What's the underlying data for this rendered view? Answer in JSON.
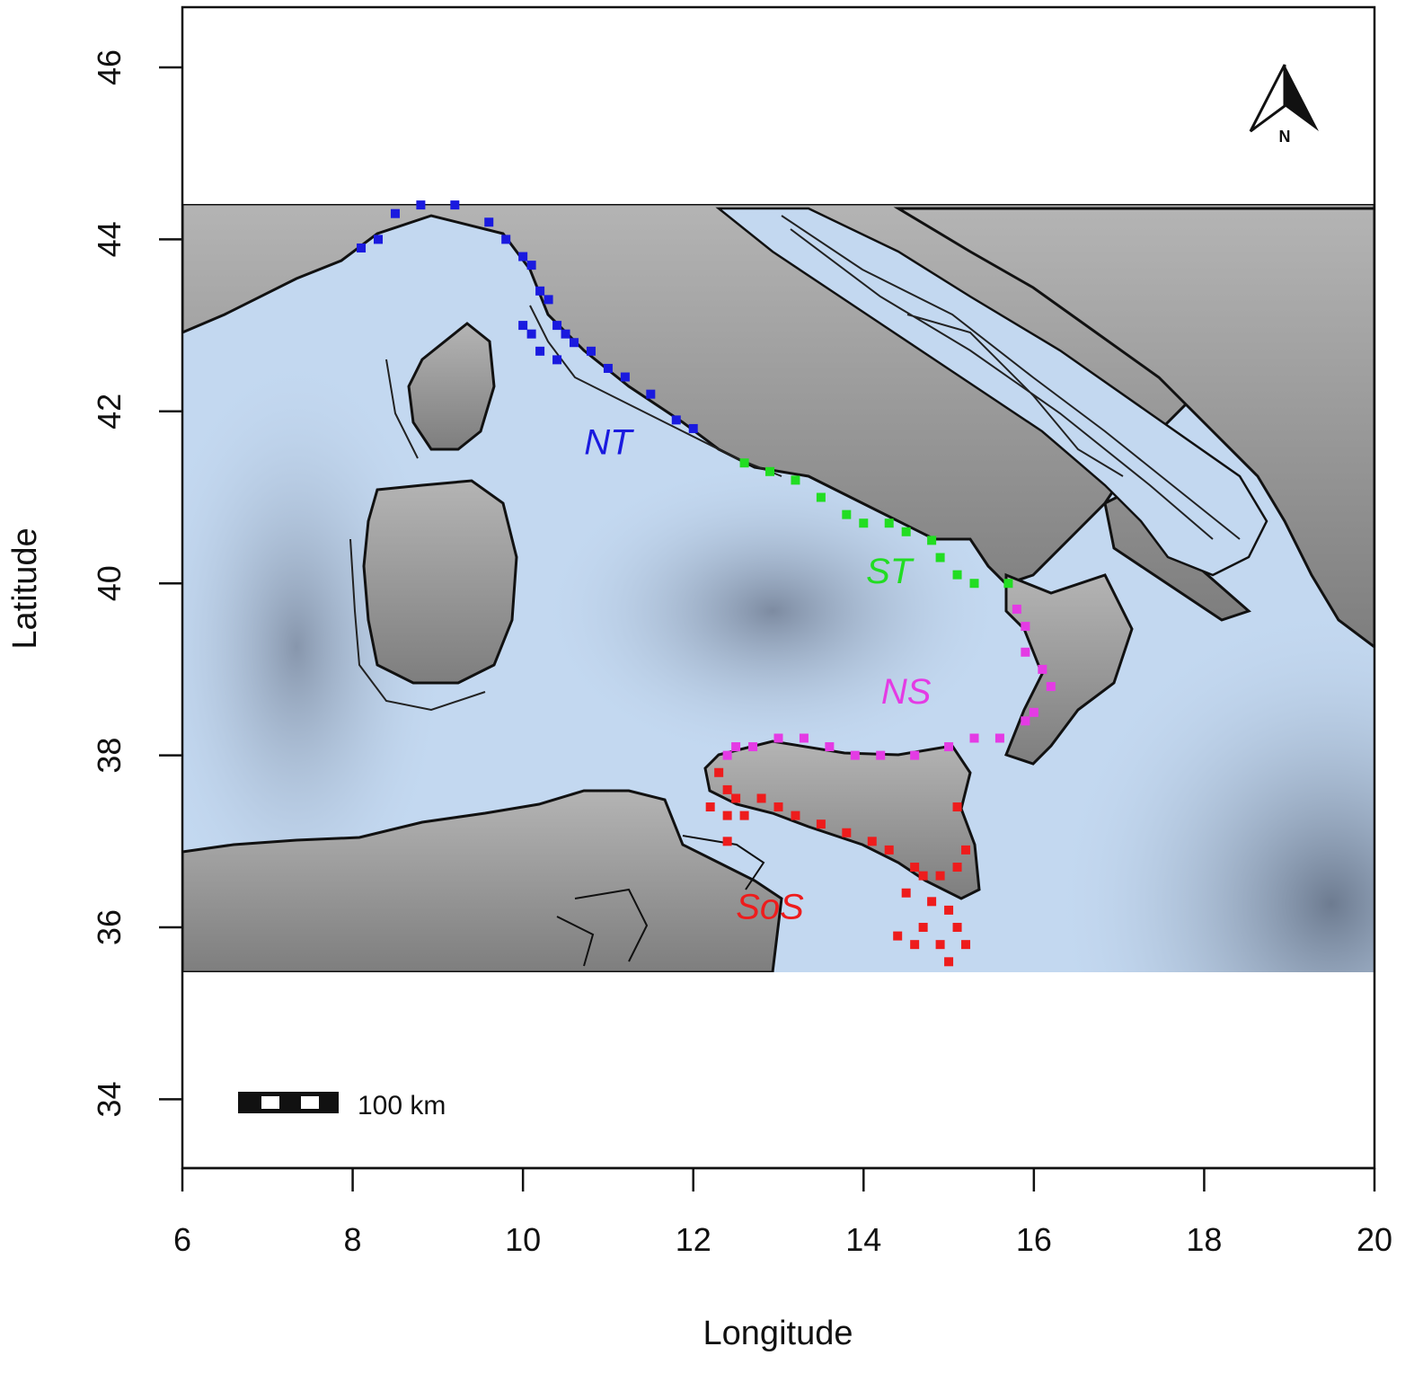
{
  "axes": {
    "x_label": "Longitude",
    "y_label": "Latitude",
    "x_ticks": [
      6,
      8,
      10,
      12,
      14,
      16,
      18,
      20
    ],
    "y_ticks": [
      34,
      36,
      38,
      40,
      42,
      44,
      46
    ],
    "x_range": [
      6,
      20
    ],
    "y_range": [
      33.2,
      46.7
    ]
  },
  "raster_extent": {
    "lon": [
      6,
      20
    ],
    "lat": [
      35.5,
      44.5
    ]
  },
  "colors": {
    "sea": "#c3d8f0",
    "deep_sea": "#8a98ad",
    "land": "#8c8c8c",
    "coast": "#111111",
    "NT": "#1a1adf",
    "ST": "#22dd22",
    "NS": "#e43be4",
    "SoS": "#ee1c1c"
  },
  "regions": [
    {
      "id": "NT",
      "label": "NT",
      "lon": 11.0,
      "lat": 41.5
    },
    {
      "id": "ST",
      "label": "ST",
      "lon": 14.3,
      "lat": 40.0
    },
    {
      "id": "NS",
      "label": "NS",
      "lon": 14.5,
      "lat": 38.6
    },
    {
      "id": "SoS",
      "label": "SoS",
      "lon": 12.9,
      "lat": 36.1
    }
  ],
  "scale_bar": {
    "label": "100 km"
  },
  "north_arrow": {
    "label": "N"
  },
  "sample_points": {
    "NT": [
      [
        8.1,
        43.9
      ],
      [
        8.3,
        44.0
      ],
      [
        8.5,
        44.3
      ],
      [
        8.8,
        44.4
      ],
      [
        9.2,
        44.4
      ],
      [
        9.6,
        44.2
      ],
      [
        9.8,
        44.0
      ],
      [
        10.0,
        43.8
      ],
      [
        10.1,
        43.7
      ],
      [
        10.2,
        43.4
      ],
      [
        10.3,
        43.3
      ],
      [
        10.4,
        43.0
      ],
      [
        10.5,
        42.9
      ],
      [
        10.2,
        42.7
      ],
      [
        10.4,
        42.6
      ],
      [
        10.6,
        42.8
      ],
      [
        10.8,
        42.7
      ],
      [
        11.0,
        42.5
      ],
      [
        11.2,
        42.4
      ],
      [
        11.5,
        42.2
      ],
      [
        11.8,
        41.9
      ],
      [
        12.0,
        41.8
      ],
      [
        10.0,
        43.0
      ],
      [
        10.1,
        42.9
      ]
    ],
    "ST": [
      [
        12.6,
        41.4
      ],
      [
        12.9,
        41.3
      ],
      [
        13.2,
        41.2
      ],
      [
        13.5,
        41.0
      ],
      [
        13.8,
        40.8
      ],
      [
        14.0,
        40.7
      ],
      [
        14.3,
        40.7
      ],
      [
        14.5,
        40.6
      ],
      [
        14.8,
        40.5
      ],
      [
        14.9,
        40.3
      ],
      [
        15.1,
        40.1
      ],
      [
        15.3,
        40.0
      ],
      [
        15.7,
        40.0
      ]
    ],
    "NS": [
      [
        15.8,
        39.7
      ],
      [
        15.9,
        39.5
      ],
      [
        15.9,
        39.2
      ],
      [
        16.1,
        39.0
      ],
      [
        16.2,
        38.8
      ],
      [
        16.0,
        38.5
      ],
      [
        15.9,
        38.4
      ],
      [
        15.6,
        38.2
      ],
      [
        15.3,
        38.2
      ],
      [
        15.0,
        38.1
      ],
      [
        14.6,
        38.0
      ],
      [
        14.2,
        38.0
      ],
      [
        13.9,
        38.0
      ],
      [
        13.6,
        38.1
      ],
      [
        13.3,
        38.2
      ],
      [
        13.0,
        38.2
      ],
      [
        12.7,
        38.1
      ],
      [
        12.5,
        38.1
      ],
      [
        12.4,
        38.0
      ]
    ],
    "SoS": [
      [
        12.3,
        37.8
      ],
      [
        12.4,
        37.6
      ],
      [
        12.5,
        37.5
      ],
      [
        12.2,
        37.4
      ],
      [
        12.4,
        37.3
      ],
      [
        12.6,
        37.3
      ],
      [
        12.8,
        37.5
      ],
      [
        13.0,
        37.4
      ],
      [
        13.2,
        37.3
      ],
      [
        13.5,
        37.2
      ],
      [
        13.8,
        37.1
      ],
      [
        14.1,
        37.0
      ],
      [
        14.3,
        36.9
      ],
      [
        14.6,
        36.7
      ],
      [
        14.7,
        36.6
      ],
      [
        14.9,
        36.6
      ],
      [
        15.1,
        36.7
      ],
      [
        15.2,
        36.9
      ],
      [
        15.1,
        37.4
      ],
      [
        14.8,
        36.3
      ],
      [
        15.0,
        36.2
      ],
      [
        14.7,
        36.0
      ],
      [
        15.1,
        36.0
      ],
      [
        14.6,
        35.8
      ],
      [
        14.9,
        35.8
      ],
      [
        15.2,
        35.8
      ],
      [
        14.4,
        35.9
      ],
      [
        15.0,
        35.6
      ],
      [
        12.4,
        37.0
      ],
      [
        14.5,
        36.4
      ]
    ]
  }
}
